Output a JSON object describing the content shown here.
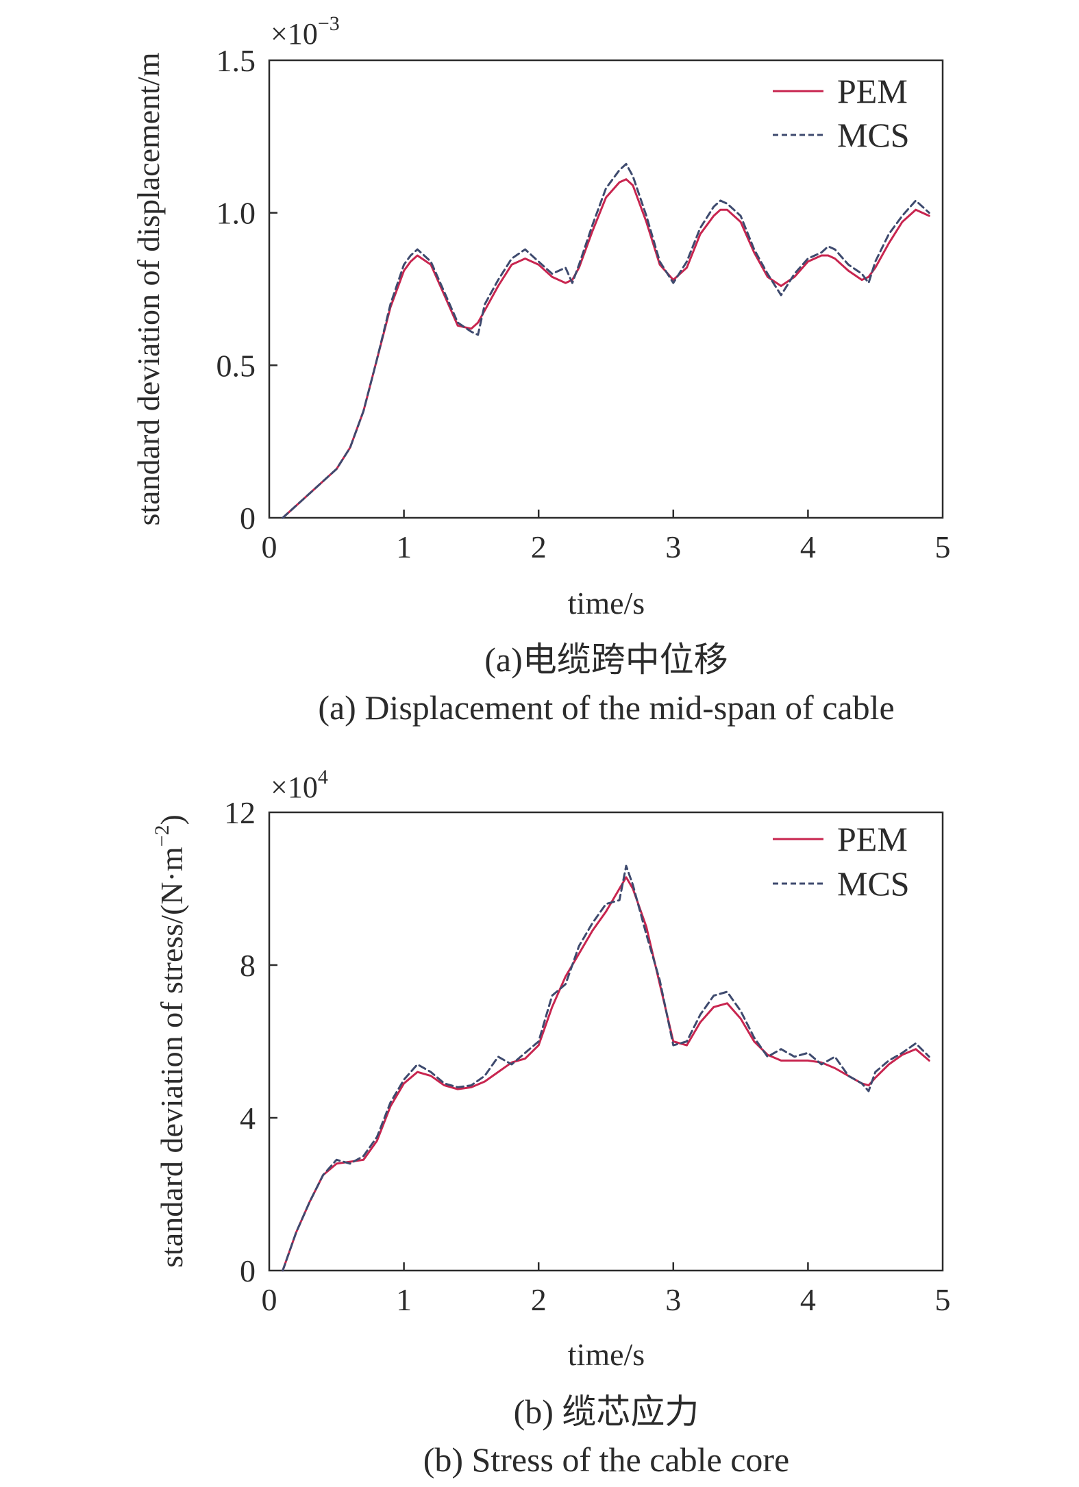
{
  "chart_data": [
    {
      "type": "line",
      "ylabel": "standard deviation of displacement/m",
      "xlabel": "time/s",
      "multiplier": {
        "base": "×10",
        "exp": "−3"
      },
      "xlim": [
        0,
        5
      ],
      "ylim": [
        0,
        1.5
      ],
      "xticks": [
        0,
        1,
        2,
        3,
        4,
        5
      ],
      "xtick_labels": [
        "0",
        "1",
        "2",
        "3",
        "4",
        "5"
      ],
      "yticks": [
        0,
        0.5,
        1.0,
        1.5
      ],
      "ytick_labels": [
        "0",
        "0.5",
        "1.0",
        "1.5"
      ],
      "legend_position": "top-right",
      "caption_cn": "(a)电缆跨中位移",
      "caption_en": "(a) Displacement of the mid-span of cable",
      "series": [
        {
          "name": "PEM",
          "style": "solid",
          "color": "#c8254f",
          "x": [
            0.1,
            0.3,
            0.5,
            0.6,
            0.7,
            0.8,
            0.9,
            1.0,
            1.05,
            1.1,
            1.2,
            1.3,
            1.4,
            1.5,
            1.55,
            1.6,
            1.7,
            1.8,
            1.9,
            2.0,
            2.1,
            2.2,
            2.25,
            2.3,
            2.4,
            2.5,
            2.6,
            2.65,
            2.7,
            2.8,
            2.9,
            3.0,
            3.1,
            3.2,
            3.3,
            3.35,
            3.4,
            3.5,
            3.6,
            3.7,
            3.8,
            3.9,
            4.0,
            4.1,
            4.15,
            4.2,
            4.3,
            4.4,
            4.45,
            4.5,
            4.6,
            4.7,
            4.8,
            4.9
          ],
          "y": [
            0.0,
            0.08,
            0.16,
            0.23,
            0.35,
            0.52,
            0.69,
            0.81,
            0.84,
            0.86,
            0.83,
            0.73,
            0.63,
            0.62,
            0.64,
            0.68,
            0.76,
            0.83,
            0.85,
            0.83,
            0.79,
            0.77,
            0.78,
            0.82,
            0.94,
            1.05,
            1.1,
            1.11,
            1.09,
            0.97,
            0.83,
            0.78,
            0.82,
            0.93,
            0.99,
            1.01,
            1.01,
            0.97,
            0.87,
            0.79,
            0.76,
            0.79,
            0.84,
            0.86,
            0.86,
            0.85,
            0.81,
            0.78,
            0.79,
            0.82,
            0.9,
            0.97,
            1.01,
            0.99
          ]
        },
        {
          "name": "MCS",
          "style": "dashed",
          "color": "#3e4a6e",
          "x": [
            0.1,
            0.3,
            0.5,
            0.6,
            0.7,
            0.8,
            0.9,
            1.0,
            1.05,
            1.1,
            1.2,
            1.3,
            1.4,
            1.5,
            1.55,
            1.6,
            1.7,
            1.8,
            1.9,
            2.0,
            2.1,
            2.2,
            2.25,
            2.3,
            2.4,
            2.5,
            2.6,
            2.65,
            2.7,
            2.8,
            2.9,
            3.0,
            3.1,
            3.2,
            3.3,
            3.35,
            3.4,
            3.5,
            3.6,
            3.7,
            3.8,
            3.9,
            4.0,
            4.1,
            4.15,
            4.2,
            4.3,
            4.4,
            4.45,
            4.5,
            4.6,
            4.7,
            4.8,
            4.9
          ],
          "y": [
            0.0,
            0.08,
            0.16,
            0.23,
            0.35,
            0.52,
            0.7,
            0.83,
            0.86,
            0.88,
            0.84,
            0.74,
            0.64,
            0.61,
            0.6,
            0.7,
            0.78,
            0.85,
            0.88,
            0.84,
            0.8,
            0.82,
            0.77,
            0.83,
            0.96,
            1.08,
            1.14,
            1.16,
            1.12,
            0.99,
            0.84,
            0.77,
            0.84,
            0.95,
            1.02,
            1.04,
            1.03,
            0.99,
            0.88,
            0.8,
            0.73,
            0.8,
            0.85,
            0.87,
            0.89,
            0.88,
            0.83,
            0.8,
            0.77,
            0.84,
            0.93,
            0.99,
            1.04,
            1.0
          ]
        }
      ]
    },
    {
      "type": "line",
      "ylabel_main": "standard deviation of stress/(N·m",
      "ylabel_exp": "−2",
      "ylabel_end": ")",
      "xlabel": "time/s",
      "multiplier": {
        "base": "×10",
        "exp": "4"
      },
      "xlim": [
        0,
        5
      ],
      "ylim": [
        0,
        12
      ],
      "xticks": [
        0,
        1,
        2,
        3,
        4,
        5
      ],
      "xtick_labels": [
        "0",
        "1",
        "2",
        "3",
        "4",
        "5"
      ],
      "yticks": [
        0,
        4,
        8,
        12
      ],
      "ytick_labels": [
        "0",
        "4",
        "8",
        "12"
      ],
      "legend_position": "top-right",
      "caption_cn": "(b) 缆芯应力",
      "caption_en": "(b) Stress of the cable core",
      "series": [
        {
          "name": "PEM",
          "style": "solid",
          "color": "#c8254f",
          "x": [
            0.1,
            0.2,
            0.3,
            0.4,
            0.5,
            0.6,
            0.7,
            0.8,
            0.9,
            1.0,
            1.1,
            1.2,
            1.3,
            1.4,
            1.5,
            1.6,
            1.7,
            1.8,
            1.9,
            2.0,
            2.1,
            2.2,
            2.3,
            2.4,
            2.5,
            2.6,
            2.65,
            2.7,
            2.8,
            2.9,
            3.0,
            3.1,
            3.2,
            3.3,
            3.4,
            3.5,
            3.6,
            3.7,
            3.8,
            3.9,
            4.0,
            4.1,
            4.2,
            4.3,
            4.4,
            4.45,
            4.5,
            4.6,
            4.7,
            4.8,
            4.9
          ],
          "y": [
            0.0,
            1.0,
            1.8,
            2.5,
            2.8,
            2.85,
            2.9,
            3.4,
            4.3,
            4.9,
            5.2,
            5.1,
            4.85,
            4.75,
            4.8,
            4.95,
            5.2,
            5.45,
            5.55,
            5.9,
            6.9,
            7.7,
            8.3,
            8.9,
            9.4,
            10.0,
            10.3,
            10.0,
            9.0,
            7.5,
            6.0,
            5.9,
            6.5,
            6.9,
            7.0,
            6.6,
            6.0,
            5.65,
            5.5,
            5.5,
            5.5,
            5.45,
            5.3,
            5.1,
            4.9,
            4.85,
            5.05,
            5.4,
            5.65,
            5.8,
            5.5
          ]
        },
        {
          "name": "MCS",
          "style": "dashed",
          "color": "#3e4a6e",
          "x": [
            0.1,
            0.2,
            0.3,
            0.4,
            0.5,
            0.6,
            0.7,
            0.8,
            0.9,
            1.0,
            1.1,
            1.2,
            1.3,
            1.4,
            1.5,
            1.6,
            1.7,
            1.8,
            1.9,
            2.0,
            2.1,
            2.2,
            2.3,
            2.4,
            2.5,
            2.6,
            2.65,
            2.7,
            2.8,
            2.9,
            3.0,
            3.1,
            3.2,
            3.3,
            3.4,
            3.5,
            3.6,
            3.7,
            3.8,
            3.9,
            4.0,
            4.1,
            4.2,
            4.3,
            4.4,
            4.45,
            4.5,
            4.6,
            4.7,
            4.8,
            4.9
          ],
          "y": [
            0.0,
            1.0,
            1.8,
            2.5,
            2.9,
            2.8,
            3.0,
            3.5,
            4.4,
            5.0,
            5.4,
            5.2,
            4.9,
            4.8,
            4.85,
            5.1,
            5.6,
            5.4,
            5.7,
            6.0,
            7.2,
            7.5,
            8.5,
            9.1,
            9.6,
            9.7,
            10.6,
            10.1,
            8.8,
            7.6,
            5.9,
            6.0,
            6.7,
            7.2,
            7.3,
            6.8,
            6.1,
            5.6,
            5.8,
            5.6,
            5.7,
            5.4,
            5.6,
            5.1,
            4.9,
            4.7,
            5.2,
            5.5,
            5.7,
            5.95,
            5.6
          ]
        }
      ]
    }
  ]
}
